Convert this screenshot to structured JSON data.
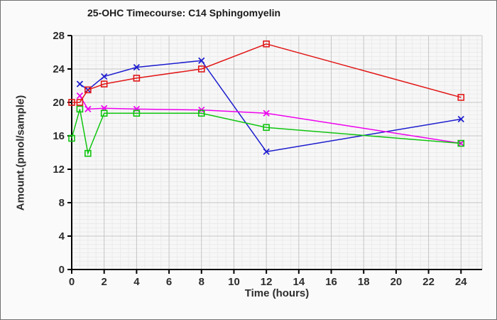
{
  "chart_data": {
    "type": "line",
    "title": "25-OHC Timecourse: C14 Sphingomyelin",
    "xlabel": "Time (hours)",
    "ylabel": "Amount.(pmol/sample)",
    "xlim": [
      0,
      25.3
    ],
    "ylim": [
      0,
      28
    ],
    "xticks": [
      0,
      2,
      4,
      6,
      8,
      10,
      12,
      14,
      16,
      18,
      20,
      22,
      24
    ],
    "yticks": [
      0,
      4,
      8,
      12,
      16,
      20,
      24,
      28
    ],
    "x_minor_step": 0.5,
    "y_minor_step": 0.5,
    "grid": "major-and-minor",
    "legend": "none",
    "series": [
      {
        "name": "series-blue",
        "color": "#1c1ccf",
        "marker": "x",
        "x": [
          0.5,
          1,
          2,
          4,
          8,
          12,
          24
        ],
        "y": [
          22.2,
          21.5,
          23.1,
          24.2,
          25.0,
          14.1,
          18.0
        ]
      },
      {
        "name": "series-magenta",
        "color": "#ee00ee",
        "marker": "x",
        "x": [
          0.5,
          1,
          2,
          4,
          8,
          12,
          24
        ],
        "y": [
          20.8,
          19.2,
          19.3,
          19.2,
          19.1,
          18.7,
          15.1
        ]
      },
      {
        "name": "series-green",
        "color": "#0fc50f",
        "marker": "square",
        "x": [
          0,
          0.5,
          1,
          2,
          4,
          8,
          12,
          24
        ],
        "y": [
          15.7,
          19.2,
          13.9,
          18.7,
          18.7,
          18.7,
          17.0,
          15.1
        ]
      },
      {
        "name": "series-red",
        "color": "#e21717",
        "marker": "square",
        "x": [
          0,
          0.5,
          1,
          2,
          4,
          8,
          12,
          24
        ],
        "y": [
          20.0,
          20.0,
          21.5,
          22.2,
          22.9,
          24.0,
          27.0,
          20.6
        ]
      }
    ],
    "colors": {
      "plot_bg": "#f7f7f7",
      "page_bg": "#fafafa",
      "grid_minor": "#ebebeb",
      "grid_major": "#c5c5c5",
      "axis": "#000000",
      "tick_text": "#2d2d2d"
    }
  }
}
